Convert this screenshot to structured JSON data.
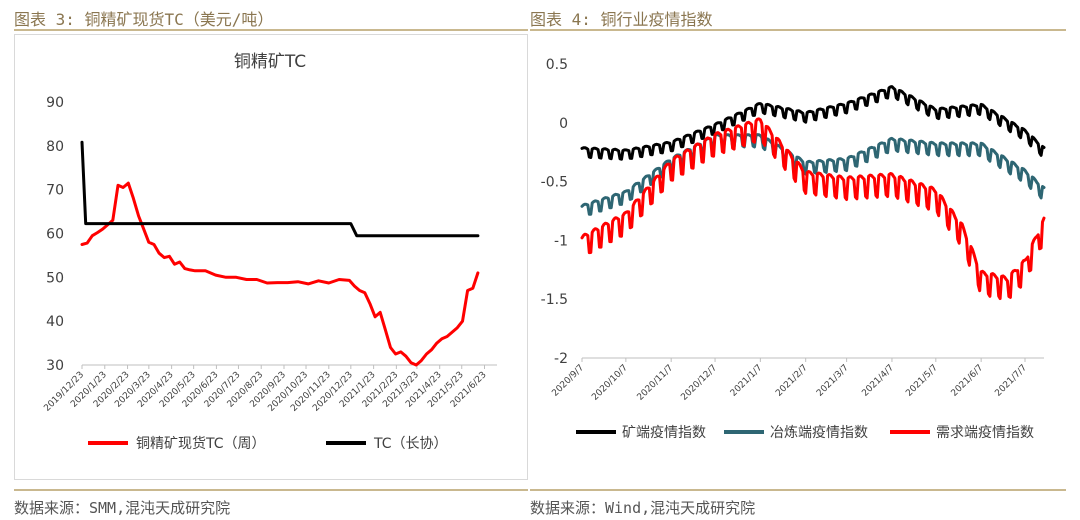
{
  "left_panel": {
    "figure_title": "图表 3: 铜精矿现货TC（美元/吨）",
    "source": "数据来源：SMM,混沌天成研究院"
  },
  "right_panel": {
    "figure_title": "图表 4: 铜行业疫情指数",
    "source": "数据来源：Wind,混沌天成研究院"
  },
  "colors": {
    "red": "#ff0000",
    "black": "#000000",
    "teal": "#2e6673",
    "rule": "#c9b88f"
  },
  "chart_data": [
    {
      "type": "line",
      "title": "铜精矿TC",
      "ylim": [
        30,
        90
      ],
      "yticks": [
        "30",
        "40",
        "50",
        "60",
        "70",
        "80",
        "90"
      ],
      "xlim": [
        "2019-12-23",
        "2021-07-10"
      ],
      "xticks": [
        {
          "date": "2019-12-23",
          "label": "2019/12/23"
        },
        {
          "date": "2020-01-23",
          "label": "2020/1/23"
        },
        {
          "date": "2020-02-23",
          "label": "2020/2/23"
        },
        {
          "date": "2020-03-23",
          "label": "2020/3/23"
        },
        {
          "date": "2020-04-23",
          "label": "2020/4/23"
        },
        {
          "date": "2020-05-23",
          "label": "2020/5/23"
        },
        {
          "date": "2020-06-23",
          "label": "2020/6/23"
        },
        {
          "date": "2020-07-23",
          "label": "2020/7/23"
        },
        {
          "date": "2020-08-23",
          "label": "2020/8/23"
        },
        {
          "date": "2020-09-23",
          "label": "2020/9/23"
        },
        {
          "date": "2020-10-23",
          "label": "2020/10/23"
        },
        {
          "date": "2020-11-23",
          "label": "2020/11/23"
        },
        {
          "date": "2020-12-23",
          "label": "2020/12/23"
        },
        {
          "date": "2021-01-23",
          "label": "2021/1/23"
        },
        {
          "date": "2021-02-23",
          "label": "2021/2/23"
        },
        {
          "date": "2021-03-23",
          "label": "2021/3/23"
        },
        {
          "date": "2021-04-23",
          "label": "2021/4/23"
        },
        {
          "date": "2021-05-23",
          "label": "2021/5/23"
        },
        {
          "date": "2021-06-23",
          "label": "2021/6/23"
        }
      ],
      "legend_position": "bottom",
      "series": [
        {
          "name": "铜精矿现货TC（周）",
          "color": "#ff0000",
          "points": [
            [
              "2019-12-23",
              57.5
            ],
            [
              "2019-12-30",
              57.8
            ],
            [
              "2020-01-06",
              59.5
            ],
            [
              "2020-01-13",
              60.2
            ],
            [
              "2020-01-20",
              61
            ],
            [
              "2020-01-27",
              62
            ],
            [
              "2020-02-03",
              63
            ],
            [
              "2020-02-10",
              71
            ],
            [
              "2020-02-17",
              70.5
            ],
            [
              "2020-02-24",
              71.5
            ],
            [
              "2020-03-02",
              68
            ],
            [
              "2020-03-09",
              64
            ],
            [
              "2020-03-16",
              61
            ],
            [
              "2020-03-23",
              58
            ],
            [
              "2020-03-30",
              57.5
            ],
            [
              "2020-04-06",
              55.5
            ],
            [
              "2020-04-13",
              54.5
            ],
            [
              "2020-04-20",
              54.8
            ],
            [
              "2020-04-27",
              53
            ],
            [
              "2020-05-04",
              53.5
            ],
            [
              "2020-05-11",
              52
            ],
            [
              "2020-05-18",
              51.7
            ],
            [
              "2020-05-25",
              51.5
            ],
            [
              "2020-06-08",
              51.5
            ],
            [
              "2020-06-22",
              50.5
            ],
            [
              "2020-07-06",
              50
            ],
            [
              "2020-07-20",
              50
            ],
            [
              "2020-08-03",
              49.5
            ],
            [
              "2020-08-17",
              49.5
            ],
            [
              "2020-08-31",
              48.7
            ],
            [
              "2020-09-14",
              48.8
            ],
            [
              "2020-09-28",
              48.8
            ],
            [
              "2020-10-12",
              49
            ],
            [
              "2020-10-26",
              48.5
            ],
            [
              "2020-11-09",
              49.2
            ],
            [
              "2020-11-23",
              48.7
            ],
            [
              "2020-12-07",
              49.5
            ],
            [
              "2020-12-21",
              49.3
            ],
            [
              "2020-12-28",
              48
            ],
            [
              "2021-01-04",
              47
            ],
            [
              "2021-01-11",
              46.5
            ],
            [
              "2021-01-18",
              44
            ],
            [
              "2021-01-25",
              41
            ],
            [
              "2021-02-01",
              42
            ],
            [
              "2021-02-08",
              38
            ],
            [
              "2021-02-15",
              34
            ],
            [
              "2021-02-22",
              32.5
            ],
            [
              "2021-03-01",
              33
            ],
            [
              "2021-03-08",
              32
            ],
            [
              "2021-03-15",
              30.5
            ],
            [
              "2021-03-22",
              30
            ],
            [
              "2021-03-29",
              31
            ],
            [
              "2021-04-05",
              32.5
            ],
            [
              "2021-04-12",
              33.5
            ],
            [
              "2021-04-19",
              35
            ],
            [
              "2021-04-26",
              36
            ],
            [
              "2021-05-03",
              36.5
            ],
            [
              "2021-05-10",
              37.5
            ],
            [
              "2021-05-17",
              38.5
            ],
            [
              "2021-05-24",
              40
            ],
            [
              "2021-05-31",
              47
            ],
            [
              "2021-06-07",
              47.5
            ],
            [
              "2021-06-14",
              51
            ]
          ]
        },
        {
          "name": "TC（长协）",
          "color": "#000000",
          "points": [
            [
              "2019-12-23",
              80.8
            ],
            [
              "2019-12-28",
              62.25
            ],
            [
              "2020-12-23",
              62.25
            ],
            [
              "2020-12-31",
              59.5
            ],
            [
              "2021-06-14",
              59.5
            ]
          ]
        }
      ]
    },
    {
      "type": "line",
      "title": "",
      "ylim": [
        -2,
        0.5
      ],
      "yticks": [
        "-2",
        "-1.5",
        "-1",
        "-0.5",
        "0",
        "0.5"
      ],
      "xlim": [
        "2020-09-07",
        "2021-07-20"
      ],
      "xticks": [
        {
          "date": "2020-09-07",
          "label": "2020/9/7"
        },
        {
          "date": "2020-10-07",
          "label": "2020/10/7"
        },
        {
          "date": "2020-11-07",
          "label": "2020/11/7"
        },
        {
          "date": "2020-12-07",
          "label": "2020/12/7"
        },
        {
          "date": "2021-01-07",
          "label": "2021/1/7"
        },
        {
          "date": "2021-02-07",
          "label": "2021/2/7"
        },
        {
          "date": "2021-03-07",
          "label": "2021/3/7"
        },
        {
          "date": "2021-04-07",
          "label": "2021/4/7"
        },
        {
          "date": "2021-05-07",
          "label": "2021/5/7"
        },
        {
          "date": "2021-06-07",
          "label": "2021/6/7"
        },
        {
          "date": "2021-07-07",
          "label": "2021/7/7"
        }
      ],
      "legend_position": "bottom",
      "series": [
        {
          "name": "矿端疫情指数",
          "color": "#000000",
          "amplitude": 0.04,
          "points": [
            [
              "2020-09-07",
              -0.25
            ],
            [
              "2020-10-07",
              -0.27
            ],
            [
              "2020-11-07",
              -0.2
            ],
            [
              "2020-12-07",
              -0.05
            ],
            [
              "2021-01-07",
              0.13
            ],
            [
              "2021-02-07",
              0.05
            ],
            [
              "2021-03-07",
              0.13
            ],
            [
              "2021-04-07",
              0.27
            ],
            [
              "2021-05-07",
              0.08
            ],
            [
              "2021-06-07",
              0.12
            ],
            [
              "2021-07-07",
              -0.1
            ],
            [
              "2021-07-20",
              -0.25
            ]
          ]
        },
        {
          "name": "冶炼端疫情指数",
          "color": "#2e6673",
          "amplitude": 0.05,
          "points": [
            [
              "2020-09-07",
              -0.75
            ],
            [
              "2020-10-07",
              -0.63
            ],
            [
              "2020-11-07",
              -0.35
            ],
            [
              "2020-12-07",
              -0.15
            ],
            [
              "2021-01-07",
              -0.15
            ],
            [
              "2021-02-07",
              -0.38
            ],
            [
              "2021-03-07",
              -0.35
            ],
            [
              "2021-04-07",
              -0.18
            ],
            [
              "2021-05-07",
              -0.22
            ],
            [
              "2021-06-07",
              -0.22
            ],
            [
              "2021-07-07",
              -0.45
            ],
            [
              "2021-07-20",
              -0.6
            ]
          ]
        },
        {
          "name": "需求端疫情指数",
          "color": "#ff0000",
          "amplitude": 0.09,
          "points": [
            [
              "2020-09-07",
              -1.05
            ],
            [
              "2020-10-07",
              -0.85
            ],
            [
              "2020-11-07",
              -0.4
            ],
            [
              "2020-12-07",
              -0.18
            ],
            [
              "2021-01-07",
              -0.05
            ],
            [
              "2021-02-07",
              -0.5
            ],
            [
              "2021-03-07",
              -0.55
            ],
            [
              "2021-04-07",
              -0.52
            ],
            [
              "2021-05-07",
              -0.65
            ],
            [
              "2021-05-25",
              -0.95
            ],
            [
              "2021-06-07",
              -1.35
            ],
            [
              "2021-06-25",
              -1.4
            ],
            [
              "2021-07-07",
              -1.25
            ],
            [
              "2021-07-20",
              -0.9
            ]
          ]
        }
      ]
    }
  ]
}
